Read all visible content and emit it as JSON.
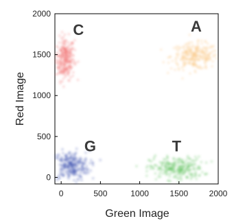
{
  "chart_data": {
    "type": "scatter",
    "xlabel": "Green Image",
    "ylabel": "Red Image",
    "xlim": [
      -80,
      2000
    ],
    "ylim": [
      -80,
      2000
    ],
    "xticks": [
      0,
      500,
      1000,
      1500,
      2000
    ],
    "yticks": [
      0,
      500,
      1000,
      1500,
      2000
    ],
    "grid": false,
    "clusters": [
      {
        "label": "C",
        "color": "#f07070",
        "center": [
          50,
          1450
        ],
        "spread": [
          60,
          130
        ],
        "label_at": [
          220,
          1740
        ]
      },
      {
        "label": "A",
        "color": "#f8c27a",
        "center": [
          1700,
          1480
        ],
        "spread": [
          150,
          80
        ],
        "label_at": [
          1720,
          1780
        ]
      },
      {
        "label": "G",
        "color": "#3d4fb0",
        "center": [
          120,
          140
        ],
        "spread": [
          120,
          90
        ],
        "label_at": [
          370,
          320
        ]
      },
      {
        "label": "T",
        "color": "#5cc05a",
        "center": [
          1470,
          110
        ],
        "spread": [
          170,
          70
        ],
        "label_at": [
          1470,
          320
        ]
      }
    ]
  }
}
